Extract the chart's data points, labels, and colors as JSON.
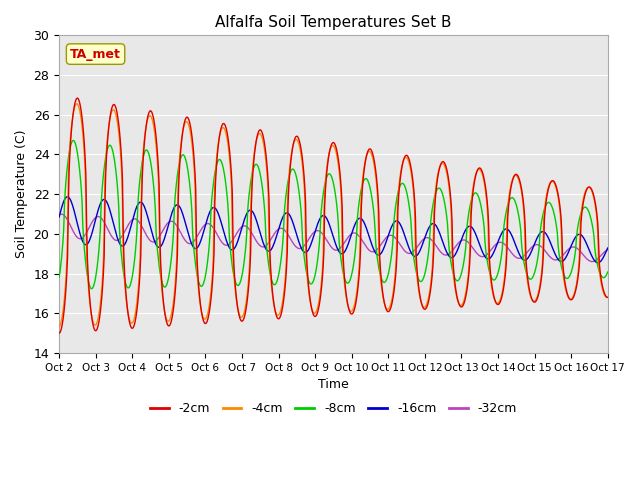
{
  "title": "Alfalfa Soil Temperatures Set B",
  "xlabel": "Time",
  "ylabel": "Soil Temperature (C)",
  "ylim": [
    14,
    30
  ],
  "xlim": [
    0,
    15
  ],
  "x_tick_labels": [
    "Oct 2",
    "Oct 3",
    "Oct 4",
    "Oct 5",
    "Oct 6",
    "Oct 7",
    "Oct 8",
    "Oct 9",
    "Oct 10",
    "Oct 11",
    "Oct 12",
    "Oct 13",
    "Oct 14",
    "Oct 15",
    "Oct 16",
    "Oct 17"
  ],
  "background_color": "#e8e8e8",
  "figure_background": "#ffffff",
  "annotation_text": "TA_met",
  "annotation_bg": "#ffffcc",
  "annotation_fg": "#cc0000",
  "series": {
    "2cm": {
      "color": "#dd0000"
    },
    "4cm": {
      "color": "#ff8800"
    },
    "8cm": {
      "color": "#00cc00"
    },
    "16cm": {
      "color": "#0000cc"
    },
    "32cm": {
      "color": "#bb44bb"
    }
  },
  "legend_colors": [
    "#dd0000",
    "#ff8800",
    "#00cc00",
    "#0000cc",
    "#bb44bb"
  ],
  "legend_labels": [
    "-2cm",
    "-4cm",
    "-8cm",
    "-16cm",
    "-32cm"
  ]
}
